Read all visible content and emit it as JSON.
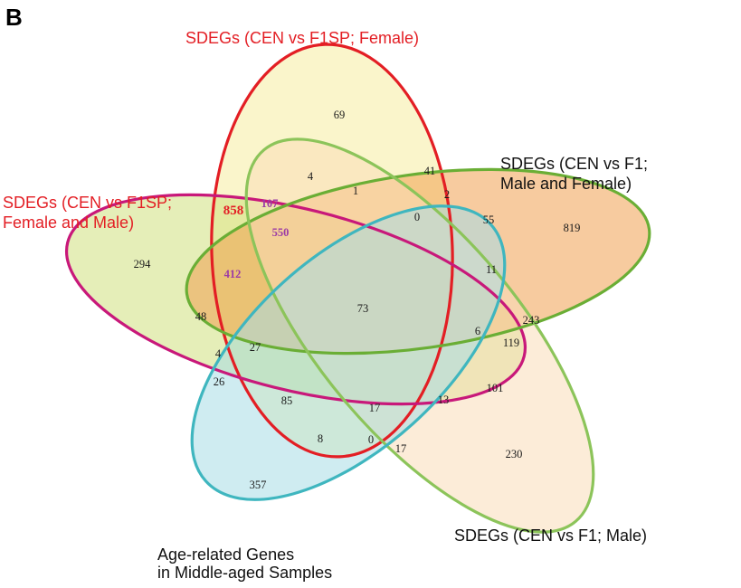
{
  "panel_label": "B",
  "sets": [
    {
      "id": "cen_f1sp_female",
      "label_lines": [
        "SDEGs (CEN vs F1SP; Female)"
      ],
      "stroke": "#e31e24",
      "fill": "#f6eda0",
      "label_color": "#e31e24"
    },
    {
      "id": "cen_f1sp_both",
      "label_lines": [
        "SDEGs (CEN vs F1SP;",
        "Female and Male)"
      ],
      "stroke": "#c8187a",
      "fill": "#cfe07e",
      "label_color": "#e31e24"
    },
    {
      "id": "cen_f1_both",
      "label_lines": [
        "SDEGs (CEN vs F1;",
        "Male and Female)"
      ],
      "stroke": "#6aae35",
      "fill": "#f0a050",
      "label_color": "#111111"
    },
    {
      "id": "cen_f1_male",
      "label_lines": [
        "SDEGs (CEN vs F1; Male)"
      ],
      "stroke": "#8cc45a",
      "fill": "#f9dcb8",
      "label_color": "#111111"
    },
    {
      "id": "age_related",
      "label_lines": [
        "Age-related Genes",
        "in Middle-aged Samples"
      ],
      "stroke": "#3fb6bf",
      "fill": "#a8dde6",
      "label_color": "#111111"
    }
  ],
  "regions": [
    {
      "value": "69",
      "style": "normal"
    },
    {
      "value": "4",
      "style": "normal"
    },
    {
      "value": "1",
      "style": "normal"
    },
    {
      "value": "41",
      "style": "normal"
    },
    {
      "value": "2",
      "style": "normal"
    },
    {
      "value": "0",
      "style": "normal"
    },
    {
      "value": "55",
      "style": "normal"
    },
    {
      "value": "819",
      "style": "normal"
    },
    {
      "value": "858",
      "style": "big-red"
    },
    {
      "value": "107",
      "style": "purple"
    },
    {
      "value": "550",
      "style": "purple"
    },
    {
      "value": "294",
      "style": "normal"
    },
    {
      "value": "412",
      "style": "purple"
    },
    {
      "value": "11",
      "style": "normal"
    },
    {
      "value": "73",
      "style": "normal"
    },
    {
      "value": "48",
      "style": "normal"
    },
    {
      "value": "243",
      "style": "normal"
    },
    {
      "value": "6",
      "style": "normal"
    },
    {
      "value": "119",
      "style": "normal"
    },
    {
      "value": "4",
      "style": "normal"
    },
    {
      "value": "27",
      "style": "normal"
    },
    {
      "value": "26",
      "style": "normal"
    },
    {
      "value": "101",
      "style": "normal"
    },
    {
      "value": "85",
      "style": "normal"
    },
    {
      "value": "17",
      "style": "normal"
    },
    {
      "value": "13",
      "style": "normal"
    },
    {
      "value": "8",
      "style": "normal"
    },
    {
      "value": "0",
      "style": "normal"
    },
    {
      "value": "17",
      "style": "normal"
    },
    {
      "value": "230",
      "style": "normal"
    },
    {
      "value": "357",
      "style": "normal"
    }
  ],
  "colors": {
    "big_red": "#e31e24",
    "purple": "#9b3aa6",
    "normal": "#1a1a1a"
  }
}
